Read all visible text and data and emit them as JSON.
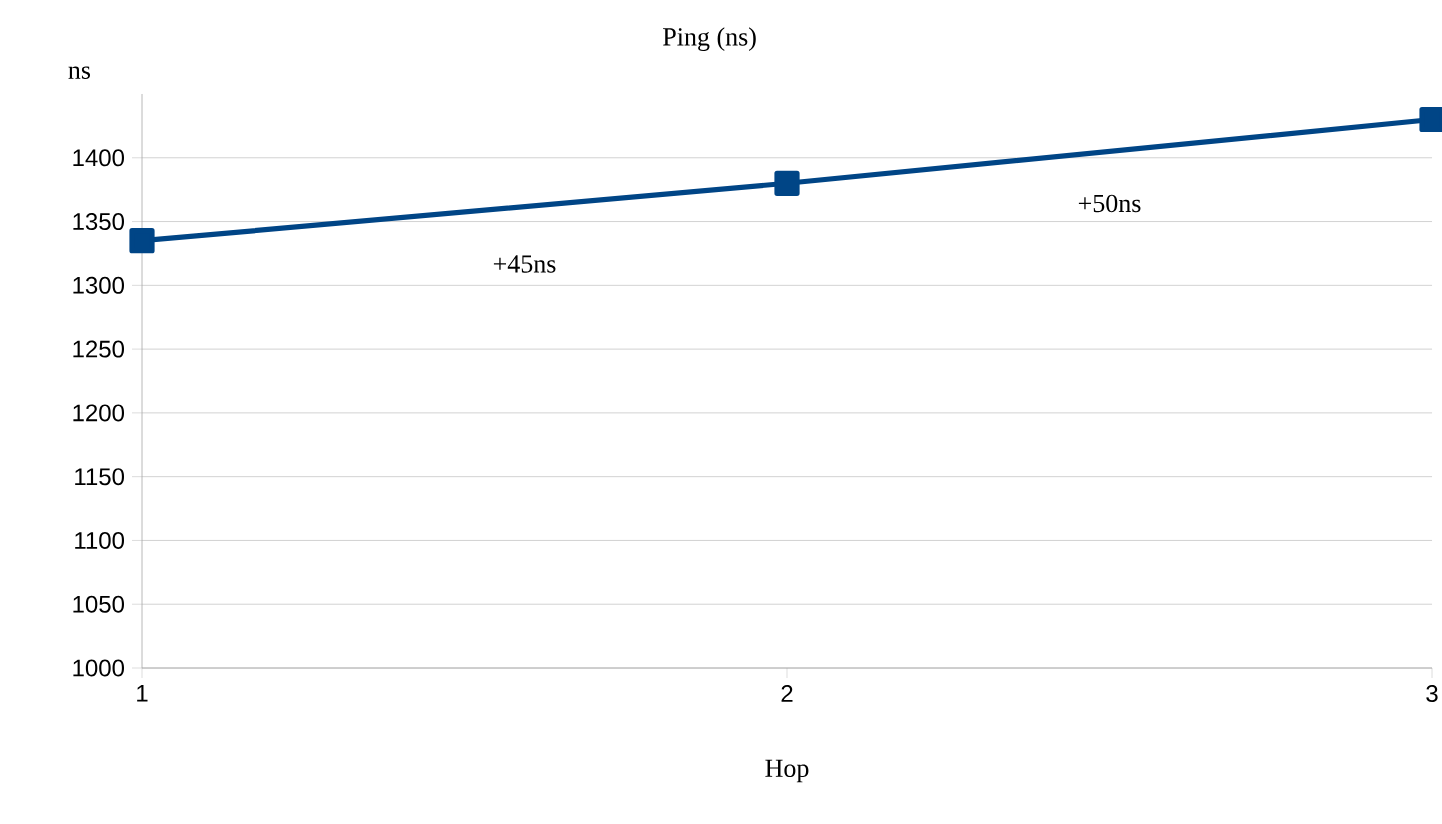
{
  "chart_data": {
    "type": "line",
    "title": "Ping (ns)",
    "xlabel": "Hop",
    "ylabel": "ns",
    "x": [
      1,
      2,
      3
    ],
    "series": [
      {
        "color": "#004586",
        "values": [
          1335,
          1380,
          1430
        ]
      }
    ],
    "xlim": [
      1,
      3
    ],
    "xticks": [
      1,
      2,
      3
    ],
    "ylim": [
      1000,
      1450
    ],
    "yticks": [
      1000,
      1050,
      1100,
      1150,
      1200,
      1250,
      1300,
      1350,
      1400
    ],
    "grid": "y",
    "marker": "square",
    "line_style": "solid",
    "annotations": [
      "+45ns",
      "+50ns"
    ]
  }
}
